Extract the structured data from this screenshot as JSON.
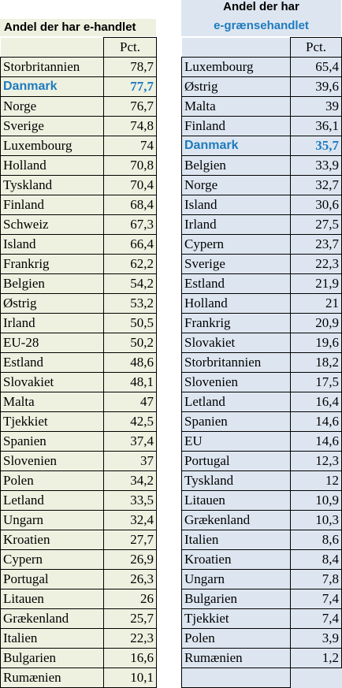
{
  "left": {
    "title": "Andel der har e-handlet",
    "col_header": "Pct.",
    "highlight": "Danmark",
    "rows": [
      {
        "country": "Storbritannien",
        "value": "78,7"
      },
      {
        "country": "Danmark",
        "value": "77,7"
      },
      {
        "country": "Norge",
        "value": "76,7"
      },
      {
        "country": "Sverige",
        "value": "74,8"
      },
      {
        "country": "Luxembourg",
        "value": "74"
      },
      {
        "country": "Holland",
        "value": "70,8"
      },
      {
        "country": "Tyskland",
        "value": "70,4"
      },
      {
        "country": "Finland",
        "value": "68,4"
      },
      {
        "country": "Schweiz",
        "value": "67,3"
      },
      {
        "country": "Island",
        "value": "66,4"
      },
      {
        "country": "Frankrig",
        "value": "62,2"
      },
      {
        "country": "Belgien",
        "value": "54,2"
      },
      {
        "country": "Østrig",
        "value": "53,2"
      },
      {
        "country": "Irland",
        "value": "50,5"
      },
      {
        "country": "EU-28",
        "value": "50,2"
      },
      {
        "country": "Estland",
        "value": "48,6"
      },
      {
        "country": "Slovakiet",
        "value": "48,1"
      },
      {
        "country": "Malta",
        "value": "47"
      },
      {
        "country": "Tjekkiet",
        "value": "42,5"
      },
      {
        "country": "Spanien",
        "value": "37,4"
      },
      {
        "country": "Slovenien",
        "value": "37"
      },
      {
        "country": "Polen",
        "value": "34,2"
      },
      {
        "country": "Letland",
        "value": "33,5"
      },
      {
        "country": "Ungarn",
        "value": "32,4"
      },
      {
        "country": "Kroatien",
        "value": "27,7"
      },
      {
        "country": "Cypern",
        "value": "26,9"
      },
      {
        "country": "Portugal",
        "value": "26,3"
      },
      {
        "country": "Litauen",
        "value": "26"
      },
      {
        "country": "Grækenland",
        "value": "25,7"
      },
      {
        "country": "Italien",
        "value": "22,3"
      },
      {
        "country": "Bulgarien",
        "value": "16,6"
      },
      {
        "country": "Rumænien",
        "value": "10,1"
      }
    ]
  },
  "right": {
    "title_line1": "Andel der har",
    "title_line2": "e-grænsehandlet",
    "col_header": "Pct.",
    "highlight": "Danmark",
    "rows": [
      {
        "country": "Luxembourg",
        "value": "65,4"
      },
      {
        "country": "Østrig",
        "value": "39,6"
      },
      {
        "country": "Malta",
        "value": "39"
      },
      {
        "country": "Finland",
        "value": "36,1"
      },
      {
        "country": "Danmark",
        "value": "35,7"
      },
      {
        "country": "Belgien",
        "value": "33,9"
      },
      {
        "country": "Norge",
        "value": "32,7"
      },
      {
        "country": "Island",
        "value": "30,6"
      },
      {
        "country": "Irland",
        "value": "27,5"
      },
      {
        "country": "Cypern",
        "value": "23,7"
      },
      {
        "country": "Sverige",
        "value": "22,3"
      },
      {
        "country": "Estland",
        "value": "21,9"
      },
      {
        "country": "Holland",
        "value": "21"
      },
      {
        "country": "Frankrig",
        "value": "20,9"
      },
      {
        "country": "Slovakiet",
        "value": "19,6"
      },
      {
        "country": "Storbritannien",
        "value": "18,2"
      },
      {
        "country": "Slovenien",
        "value": "17,5"
      },
      {
        "country": "Letland",
        "value": "16,4"
      },
      {
        "country": "Spanien",
        "value": "14,6"
      },
      {
        "country": "EU",
        "value": "14,6"
      },
      {
        "country": "Portugal",
        "value": "12,3"
      },
      {
        "country": "Tyskland",
        "value": "12"
      },
      {
        "country": "Litauen",
        "value": "10,9"
      },
      {
        "country": "Grækenland",
        "value": "10,3"
      },
      {
        "country": "Italien",
        "value": "8,6"
      },
      {
        "country": "Kroatien",
        "value": "8,4"
      },
      {
        "country": "Ungarn",
        "value": "7,8"
      },
      {
        "country": "Bulgarien",
        "value": "7,4"
      },
      {
        "country": "Tjekkiet",
        "value": "7,4"
      },
      {
        "country": "Polen",
        "value": "3,9"
      },
      {
        "country": "Rumænien",
        "value": "1,2"
      }
    ]
  }
}
